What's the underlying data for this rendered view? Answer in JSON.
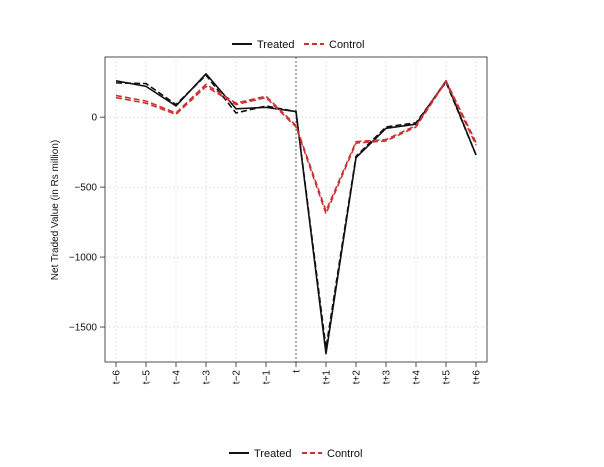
{
  "chart_data": {
    "type": "line",
    "ylabel": "Net Traded Value (in Rs million)",
    "xlabel": "",
    "categories": [
      "t−6",
      "t−5",
      "t−4",
      "t−3",
      "t−2",
      "t−1",
      "t",
      "t+1",
      "t+2",
      "t+3",
      "t+4",
      "t+5",
      "t+6"
    ],
    "event_marker": "t",
    "ylim": [
      -1750,
      430
    ],
    "yticks": [
      -1500,
      -1000,
      -500,
      0
    ],
    "ytick_labels": [
      "−1500",
      "−1000",
      "−500",
      "0"
    ],
    "grid": true,
    "legend_position": "top",
    "series": [
      {
        "name": "Treated",
        "color": "#111111",
        "dash": "solid",
        "values": [
          260,
          220,
          80,
          310,
          60,
          70,
          40,
          -1690,
          -290,
          -80,
          -50,
          260,
          -270
        ]
      },
      {
        "name": "Treated",
        "color": "#111111",
        "dash": "dashed",
        "values": [
          245,
          240,
          90,
          300,
          30,
          80,
          40,
          -1650,
          -280,
          -70,
          -40,
          250,
          -270
        ]
      },
      {
        "name": "Control",
        "color": "#cc3333",
        "dash": "dashed",
        "values": [
          155,
          115,
          30,
          235,
          100,
          150,
          -60,
          -670,
          -175,
          -160,
          -60,
          260,
          -180
        ]
      },
      {
        "name": "Control",
        "color": "#cc3333",
        "dash": "dashed",
        "values": [
          140,
          100,
          20,
          220,
          90,
          140,
          -70,
          -690,
          -185,
          -170,
          -70,
          255,
          -200
        ]
      }
    ],
    "legend": [
      {
        "label": "Treated",
        "color": "#111111",
        "dash": "solid"
      },
      {
        "label": "Control",
        "color": "#cc3333",
        "dash": "dashed"
      }
    ]
  }
}
